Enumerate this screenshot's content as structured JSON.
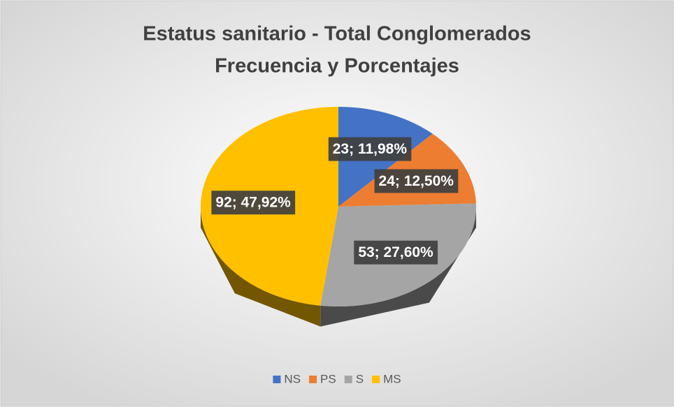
{
  "chart_data": {
    "type": "pie3d",
    "title": "Estatus sanitario - Total Conglomerados",
    "subtitle": "Frecuencia y Porcentajes",
    "categories": [
      "NS",
      "PS",
      "S",
      "MS"
    ],
    "values": [
      23,
      24,
      53,
      92
    ],
    "value_labels": [
      "23; 11,98%",
      "24; 12,50%",
      "53; 27,60%",
      "92; 47,92%"
    ],
    "colors": [
      "#4472c4",
      "#ed7d31",
      "#a5a5a5",
      "#ffc000"
    ],
    "legend": "bottom"
  }
}
